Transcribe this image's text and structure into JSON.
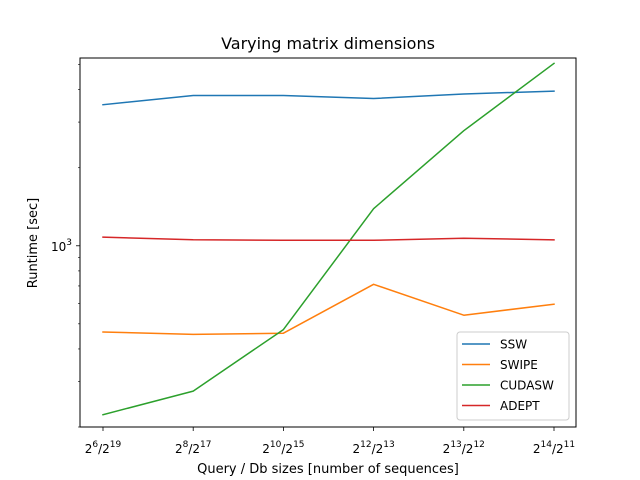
{
  "chart_data": {
    "type": "line",
    "title": "Varying matrix dimensions",
    "xlabel": "Query / Db sizes [number of sequences]",
    "ylabel": "Runtime [sec]",
    "yscale": "log",
    "ylim": [
      200,
      5300
    ],
    "x_ticks": [
      {
        "base": "2",
        "exp1": "6",
        "sep": "/2",
        "exp2": "19"
      },
      {
        "base": "2",
        "exp1": "8",
        "sep": "/2",
        "exp2": "17"
      },
      {
        "base": "2",
        "exp1": "10",
        "sep": "/2",
        "exp2": "15"
      },
      {
        "base": "2",
        "exp1": "12",
        "sep": "/2",
        "exp2": "13"
      },
      {
        "base": "2",
        "exp1": "13",
        "sep": "/2",
        "exp2": "12"
      },
      {
        "base": "2",
        "exp1": "14",
        "sep": "/2",
        "exp2": "11"
      }
    ],
    "y_tick": {
      "value": 1000,
      "base": "10",
      "exp": "3"
    },
    "grid": false,
    "legend_position": "lower-right",
    "series": [
      {
        "name": "SSW",
        "color": "#1f77b4",
        "values": [
          3500,
          3800,
          3800,
          3700,
          3850,
          3950
        ]
      },
      {
        "name": "SWIPE",
        "color": "#ff7f0e",
        "values": [
          465,
          455,
          460,
          710,
          540,
          595
        ]
      },
      {
        "name": "CUDASW",
        "color": "#2ca02c",
        "values": [
          223,
          275,
          475,
          1390,
          2780,
          5050
        ]
      },
      {
        "name": "ADEPT",
        "color": "#d62728",
        "values": [
          1080,
          1055,
          1050,
          1050,
          1070,
          1055
        ]
      }
    ]
  }
}
